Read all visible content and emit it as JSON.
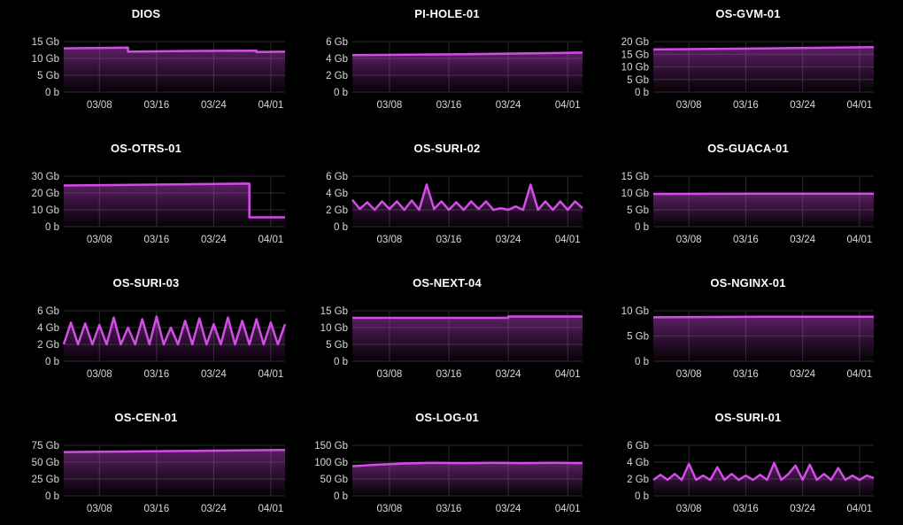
{
  "colors": {
    "background": "#000000",
    "line": "#d44ce8",
    "grid": "#2b2b2b",
    "tick_text": "#d8d9da"
  },
  "x_axis": {
    "start": "2024-03-03",
    "end": "2024-04-03",
    "ticks": [
      "03/08",
      "03/16",
      "03/24",
      "04/01"
    ]
  },
  "chart_data": [
    {
      "type": "area",
      "title": "DIOS",
      "ylim": [
        0,
        15
      ],
      "yticks": [
        "15 Gb",
        "10 Gb",
        "5 Gb",
        "0 b"
      ],
      "series": [
        {
          "x": [
            "2024-03-03",
            "2024-03-12",
            "2024-03-12",
            "2024-03-20",
            "2024-03-30",
            "2024-03-30",
            "2024-04-03"
          ],
          "values": [
            13,
            13.2,
            12,
            12.2,
            12.3,
            11.9,
            12
          ]
        }
      ]
    },
    {
      "type": "area",
      "title": "PI-HOLE-01",
      "ylim": [
        0,
        6
      ],
      "yticks": [
        "6 Gb",
        "4 Gb",
        "2 Gb",
        "0 b"
      ],
      "series": [
        {
          "x": [
            "2024-03-03",
            "2024-03-18",
            "2024-04-03"
          ],
          "values": [
            4.4,
            4.5,
            4.7
          ]
        }
      ]
    },
    {
      "type": "area",
      "title": "OS-GVM-01",
      "ylim": [
        0,
        20
      ],
      "yticks": [
        "20 Gb",
        "15 Gb",
        "10 Gb",
        "5 Gb",
        "0 b"
      ],
      "series": [
        {
          "x": [
            "2024-03-03",
            "2024-03-18",
            "2024-04-03"
          ],
          "values": [
            16.9,
            17.3,
            17.8
          ]
        }
      ]
    },
    {
      "type": "area",
      "title": "OS-OTRS-01",
      "ylim": [
        0,
        30
      ],
      "yticks": [
        "30 Gb",
        "20 Gb",
        "10 Gb",
        "0 b"
      ],
      "series": [
        {
          "x": [
            "2024-03-03",
            "2024-03-29",
            "2024-03-29",
            "2024-04-03"
          ],
          "values": [
            24.5,
            25.6,
            5.5,
            5.5
          ]
        }
      ]
    },
    {
      "type": "area",
      "title": "OS-SURI-02",
      "ylim": [
        0,
        6
      ],
      "yticks": [
        "6 Gb",
        "4 Gb",
        "2 Gb",
        "0 b"
      ],
      "series": [
        {
          "x": [
            "2024-03-03",
            "2024-03-04",
            "2024-03-05",
            "2024-03-06",
            "2024-03-07",
            "2024-03-08",
            "2024-03-09",
            "2024-03-10",
            "2024-03-11",
            "2024-03-12",
            "2024-03-13",
            "2024-03-14",
            "2024-03-15",
            "2024-03-16",
            "2024-03-17",
            "2024-03-18",
            "2024-03-19",
            "2024-03-20",
            "2024-03-21",
            "2024-03-22",
            "2024-03-23",
            "2024-03-24",
            "2024-03-25",
            "2024-03-26",
            "2024-03-27",
            "2024-03-28",
            "2024-03-29",
            "2024-03-30",
            "2024-03-31",
            "2024-04-01",
            "2024-04-02",
            "2024-04-03"
          ],
          "values": [
            3.2,
            2.1,
            2.9,
            2.0,
            3.0,
            2.1,
            3.0,
            2.0,
            3.1,
            2.0,
            5.0,
            2.1,
            3.0,
            2.0,
            2.9,
            2.0,
            3.0,
            2.1,
            3.0,
            2.0,
            2.2,
            2.0,
            2.4,
            2.0,
            5.0,
            2.0,
            3.0,
            2.0,
            3.0,
            2.0,
            3.0,
            2.2
          ]
        }
      ]
    },
    {
      "type": "area",
      "title": "OS-GUACA-01",
      "ylim": [
        0,
        15
      ],
      "yticks": [
        "15 Gb",
        "10 Gb",
        "5 Gb",
        "0 b"
      ],
      "series": [
        {
          "x": [
            "2024-03-03",
            "2024-03-18",
            "2024-04-03"
          ],
          "values": [
            9.7,
            9.8,
            9.8
          ]
        }
      ]
    },
    {
      "type": "area",
      "title": "OS-SURI-03",
      "ylim": [
        0,
        6
      ],
      "yticks": [
        "6 Gb",
        "4 Gb",
        "2 Gb",
        "0 b"
      ],
      "series": [
        {
          "x": [
            "2024-03-03",
            "2024-03-04",
            "2024-03-05",
            "2024-03-06",
            "2024-03-07",
            "2024-03-08",
            "2024-03-09",
            "2024-03-10",
            "2024-03-11",
            "2024-03-12",
            "2024-03-13",
            "2024-03-14",
            "2024-03-15",
            "2024-03-16",
            "2024-03-17",
            "2024-03-18",
            "2024-03-19",
            "2024-03-20",
            "2024-03-21",
            "2024-03-22",
            "2024-03-23",
            "2024-03-24",
            "2024-03-25",
            "2024-03-26",
            "2024-03-27",
            "2024-03-28",
            "2024-03-29",
            "2024-03-30",
            "2024-03-31",
            "2024-04-01",
            "2024-04-02",
            "2024-04-03"
          ],
          "values": [
            2.0,
            4.6,
            2.0,
            4.5,
            2.0,
            4.3,
            2.0,
            5.2,
            2.0,
            4.0,
            2.0,
            5.0,
            2.0,
            5.3,
            2.0,
            4.0,
            2.0,
            4.8,
            2.0,
            5.1,
            2.0,
            4.4,
            2.0,
            5.2,
            2.0,
            4.8,
            2.0,
            5.0,
            2.0,
            4.6,
            2.0,
            4.4
          ]
        }
      ]
    },
    {
      "type": "area",
      "title": "OS-NEXT-04",
      "ylim": [
        0,
        15
      ],
      "yticks": [
        "15 Gb",
        "10 Gb",
        "5 Gb",
        "0 b"
      ],
      "series": [
        {
          "x": [
            "2024-03-03",
            "2024-03-24",
            "2024-03-24",
            "2024-04-03"
          ],
          "values": [
            12.9,
            12.9,
            13.3,
            13.3
          ]
        }
      ]
    },
    {
      "type": "area",
      "title": "OS-NGINX-01",
      "ylim": [
        0,
        10
      ],
      "yticks": [
        "10 Gb",
        "5 Gb",
        "0 b"
      ],
      "series": [
        {
          "x": [
            "2024-03-03",
            "2024-03-18",
            "2024-04-03"
          ],
          "values": [
            8.7,
            8.8,
            8.8
          ]
        }
      ]
    },
    {
      "type": "area",
      "title": "OS-CEN-01",
      "ylim": [
        0,
        75
      ],
      "yticks": [
        "75 Gb",
        "50 Gb",
        "25 Gb",
        "0 b"
      ],
      "series": [
        {
          "x": [
            "2024-03-03",
            "2024-03-18",
            "2024-04-03"
          ],
          "values": [
            65,
            66.5,
            68
          ]
        }
      ]
    },
    {
      "type": "area",
      "title": "OS-LOG-01",
      "ylim": [
        0,
        150
      ],
      "yticks": [
        "150 Gb",
        "100 Gb",
        "50 Gb",
        "0 b"
      ],
      "series": [
        {
          "x": [
            "2024-03-03",
            "2024-03-06",
            "2024-03-10",
            "2024-03-14",
            "2024-03-18",
            "2024-03-22",
            "2024-03-26",
            "2024-03-30",
            "2024-04-03"
          ],
          "values": [
            88,
            92,
            96,
            98,
            97,
            98,
            97,
            98,
            97
          ]
        }
      ]
    },
    {
      "type": "area",
      "title": "OS-SURI-01",
      "ylim": [
        0,
        6
      ],
      "yticks": [
        "6 Gb",
        "4 Gb",
        "2 Gb",
        "0 b"
      ],
      "series": [
        {
          "x": [
            "2024-03-03",
            "2024-03-04",
            "2024-03-05",
            "2024-03-06",
            "2024-03-07",
            "2024-03-08",
            "2024-03-09",
            "2024-03-10",
            "2024-03-11",
            "2024-03-12",
            "2024-03-13",
            "2024-03-14",
            "2024-03-15",
            "2024-03-16",
            "2024-03-17",
            "2024-03-18",
            "2024-03-19",
            "2024-03-20",
            "2024-03-21",
            "2024-03-22",
            "2024-03-23",
            "2024-03-24",
            "2024-03-25",
            "2024-03-26",
            "2024-03-27",
            "2024-03-28",
            "2024-03-29",
            "2024-03-30",
            "2024-03-31",
            "2024-04-01",
            "2024-04-02",
            "2024-04-03"
          ],
          "values": [
            1.9,
            2.5,
            1.9,
            2.6,
            1.9,
            3.8,
            1.9,
            2.4,
            1.9,
            3.4,
            1.9,
            2.6,
            1.9,
            2.4,
            1.9,
            2.5,
            1.9,
            3.9,
            1.9,
            2.6,
            3.6,
            1.9,
            3.7,
            1.9,
            2.6,
            1.9,
            3.3,
            1.9,
            2.4,
            1.9,
            2.4,
            2.1
          ]
        }
      ]
    }
  ]
}
